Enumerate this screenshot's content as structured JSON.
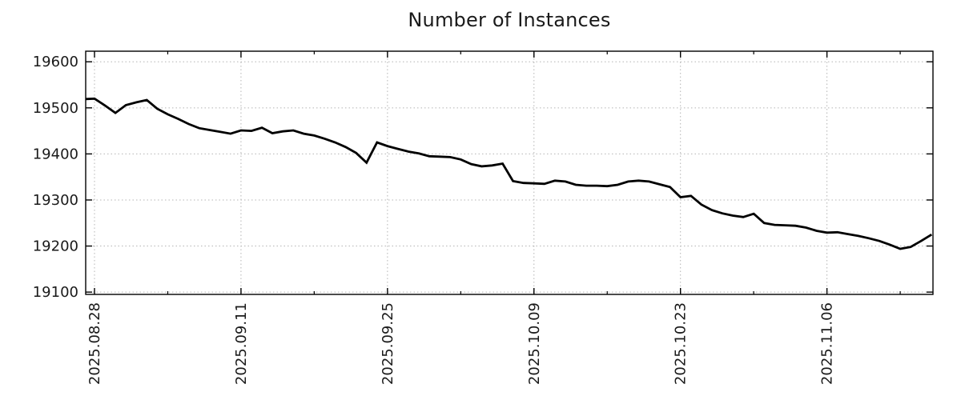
{
  "chart_data": {
    "type": "line",
    "title": "Number of Instances",
    "xlabel": "",
    "ylabel": "",
    "grid": true,
    "legend": "none",
    "line_color": "#000000",
    "grid_color": "#b4b4b4",
    "frame_color": "#000000",
    "text_color": "#1a1a1a",
    "ylim": [
      19095,
      19623
    ],
    "yticks": [
      19100,
      19200,
      19300,
      19400,
      19500,
      19600
    ],
    "xticks": [
      "2025.08.28",
      "2025.09.11",
      "2025.09.25",
      "2025.10.09",
      "2025.10.23",
      "2025.11.06"
    ],
    "minor_xticks": [
      "2025.09.04",
      "2025.09.18",
      "2025.10.02",
      "2025.10.16",
      "2025.10.30",
      "2025.11.13"
    ],
    "x": [
      "2025.08.27",
      "2025.08.28",
      "2025.08.29",
      "2025.08.30",
      "2025.08.31",
      "2025.09.01",
      "2025.09.02",
      "2025.09.03",
      "2025.09.04",
      "2025.09.05",
      "2025.09.06",
      "2025.09.07",
      "2025.09.08",
      "2025.09.09",
      "2025.09.10",
      "2025.09.11",
      "2025.09.12",
      "2025.09.13",
      "2025.09.14",
      "2025.09.15",
      "2025.09.16",
      "2025.09.17",
      "2025.09.18",
      "2025.09.19",
      "2025.09.20",
      "2025.09.21",
      "2025.09.22",
      "2025.09.23",
      "2025.09.24",
      "2025.09.25",
      "2025.09.26",
      "2025.09.27",
      "2025.09.28",
      "2025.09.29",
      "2025.09.30",
      "2025.10.01",
      "2025.10.02",
      "2025.10.03",
      "2025.10.04",
      "2025.10.05",
      "2025.10.06",
      "2025.10.07",
      "2025.10.08",
      "2025.10.09",
      "2025.10.10",
      "2025.10.11",
      "2025.10.12",
      "2025.10.13",
      "2025.10.14",
      "2025.10.15",
      "2025.10.16",
      "2025.10.17",
      "2025.10.18",
      "2025.10.19",
      "2025.10.20",
      "2025.10.21",
      "2025.10.22",
      "2025.10.23",
      "2025.10.24",
      "2025.10.25",
      "2025.10.26",
      "2025.10.27",
      "2025.10.28",
      "2025.10.29",
      "2025.10.30",
      "2025.10.31",
      "2025.11.01",
      "2025.11.02",
      "2025.11.03",
      "2025.11.04",
      "2025.11.05",
      "2025.11.06",
      "2025.11.07",
      "2025.11.08",
      "2025.11.09",
      "2025.11.10",
      "2025.11.11",
      "2025.11.12",
      "2025.11.13",
      "2025.11.14",
      "2025.11.15",
      "2025.11.16"
    ],
    "values": [
      19519,
      19520,
      19505,
      19489,
      19506,
      19512,
      19517,
      19498,
      19486,
      19476,
      19465,
      19456,
      19452,
      19448,
      19444,
      19451,
      19450,
      19457,
      19445,
      19449,
      19451,
      19444,
      19440,
      19433,
      19425,
      19415,
      19402,
      19381,
      19425,
      19417,
      19411,
      19405,
      19401,
      19395,
      19394,
      19393,
      19388,
      19378,
      19373,
      19375,
      19379,
      19341,
      19337,
      19336,
      19335,
      19342,
      19340,
      19333,
      19331,
      19331,
      19330,
      19333,
      19340,
      19342,
      19340,
      19334,
      19328,
      19306,
      19309,
      19290,
      19278,
      19271,
      19266,
      19263,
      19270,
      19250,
      19246,
      19245,
      19244,
      19240,
      19233,
      19229,
      19230,
      19226,
      19222,
      19217,
      19211,
      19203,
      19194,
      19198,
      19211,
      19225
    ]
  }
}
